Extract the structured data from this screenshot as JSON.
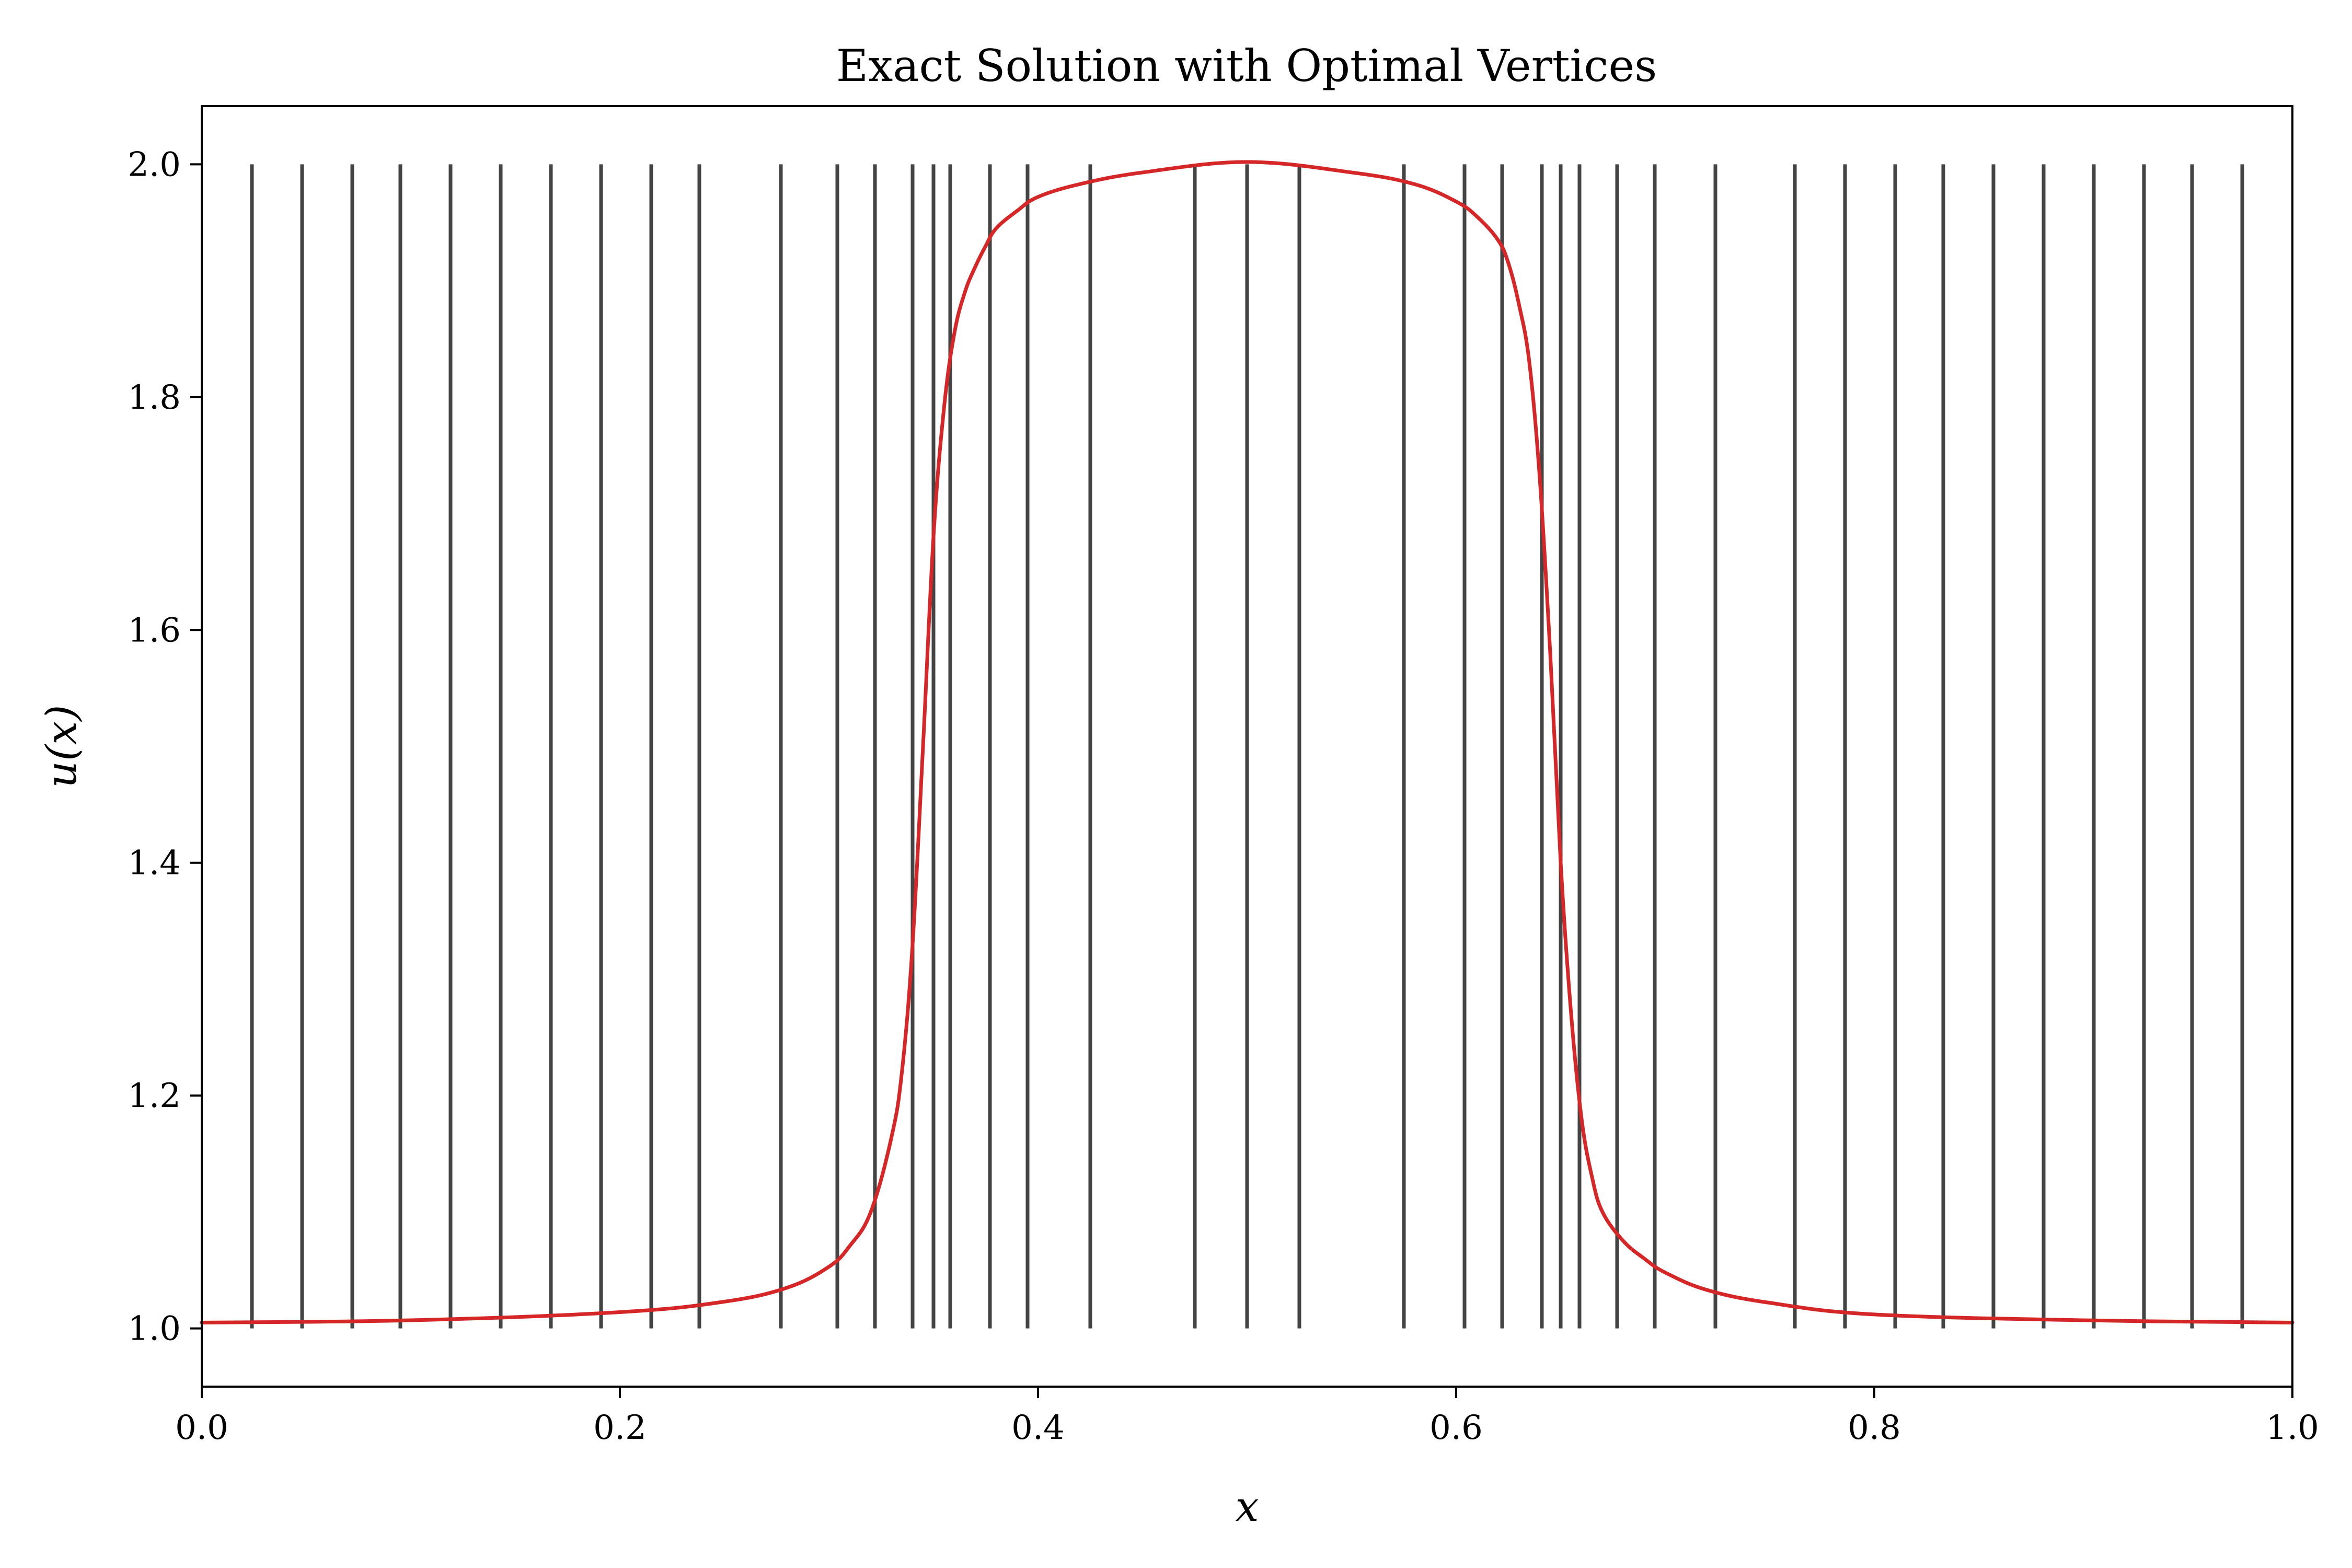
{
  "chart_data": {
    "type": "line",
    "title": "Exact Solution with Optimal Vertices",
    "xlabel": "x",
    "ylabel": "u(x)",
    "xlim": [
      0.0,
      1.0
    ],
    "ylim": [
      0.95,
      2.05
    ],
    "x_ticks": [
      "0.0",
      "0.2",
      "0.4",
      "0.6",
      "0.8",
      "1.0"
    ],
    "y_ticks": [
      "1.0",
      "1.2",
      "1.4",
      "1.6",
      "1.8",
      "2.0"
    ],
    "grid": false,
    "legend": "none",
    "series": [
      {
        "color": "#d62728",
        "x": [
          0.0,
          0.1,
          0.2,
          0.25,
          0.28,
          0.3,
          0.31,
          0.32,
          0.33,
          0.335,
          0.34,
          0.345,
          0.35,
          0.355,
          0.36,
          0.365,
          0.37,
          0.375,
          0.38,
          0.39,
          0.4,
          0.42,
          0.45,
          0.5,
          0.55,
          0.58,
          0.6,
          0.61,
          0.62,
          0.625,
          0.63,
          0.635,
          0.64,
          0.645,
          0.65,
          0.655,
          0.66,
          0.665,
          0.67,
          0.68,
          0.69,
          0.7,
          0.72,
          0.75,
          0.8,
          0.9,
          1.0
        ],
        "y": [
          1.005,
          1.007,
          1.014,
          1.023,
          1.035,
          1.053,
          1.071,
          1.1,
          1.165,
          1.222,
          1.33,
          1.5,
          1.68,
          1.79,
          1.855,
          1.89,
          1.912,
          1.93,
          1.945,
          1.96,
          1.972,
          1.983,
          1.993,
          2.002,
          1.993,
          1.983,
          1.968,
          1.955,
          1.935,
          1.915,
          1.88,
          1.83,
          1.73,
          1.58,
          1.4,
          1.27,
          1.18,
          1.13,
          1.1,
          1.075,
          1.06,
          1.048,
          1.033,
          1.022,
          1.012,
          1.007,
          1.005
        ]
      }
    ],
    "vertices": {
      "color": "#444444",
      "y_range": [
        1.0,
        2.0
      ],
      "x": [
        0.024,
        0.048,
        0.072,
        0.095,
        0.119,
        0.143,
        0.167,
        0.191,
        0.215,
        0.238,
        0.277,
        0.304,
        0.322,
        0.34,
        0.35,
        0.358,
        0.377,
        0.395,
        0.425,
        0.475,
        0.5,
        0.525,
        0.575,
        0.604,
        0.622,
        0.641,
        0.65,
        0.659,
        0.677,
        0.695,
        0.724,
        0.762,
        0.786,
        0.81,
        0.833,
        0.857,
        0.881,
        0.905,
        0.929,
        0.952,
        0.976
      ]
    }
  }
}
